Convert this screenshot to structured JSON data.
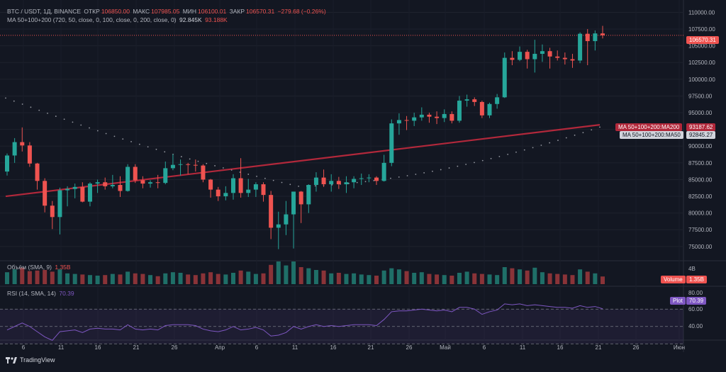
{
  "header": {
    "symbol": "BTC / USDT, 1Д, BINANCE",
    "open_label": "ОТКР",
    "open": "106850.00",
    "high_label": "МАКС",
    "high": "107985.05",
    "low_label": "МИН",
    "low": "106100.01",
    "close_label": "ЗАКР",
    "close": "106570.31",
    "change": "−279.68 (−0.26%)",
    "ma_label": "MA 50+100+200 (720, 50, close, 0, 100, close, 0, 200, close, 0)",
    "ma_v1": "92.845K",
    "ma_v2": "93.188K"
  },
  "price_axis": [
    "110000.00",
    "107500.00",
    "105000.00",
    "102500.00",
    "100000.00",
    "97500.00",
    "95000.00",
    "92500.00",
    "90000.00",
    "87500.00",
    "85000.00",
    "82500.00",
    "80000.00",
    "77500.00",
    "75000.00"
  ],
  "tags": {
    "last_price": "106570.31",
    "ma200_label": "MA 50+100+200:MA200",
    "ma200_value": "93187.62",
    "ma50_label": "MA 50+100+200:MA50",
    "ma50_value": "92845.27",
    "volume_label": "Volume",
    "volume_value": "1.35B",
    "rsi_label": "Plot",
    "rsi_value": "70.39"
  },
  "volume_pane": {
    "title": "Объём (SMA, 9)",
    "value": "1.35B",
    "axis": "4B"
  },
  "rsi_pane": {
    "title": "RSI (14, SMA, 14)",
    "value": "70.39",
    "axis": [
      "80.00",
      "60.00",
      "40.00"
    ]
  },
  "time_axis": [
    "6",
    "11",
    "16",
    "21",
    "26",
    "Апр",
    "6",
    "11",
    "16",
    "21",
    "26",
    "Май",
    "6",
    "11",
    "16",
    "21",
    "26",
    "Июн"
  ],
  "footer": {
    "brand": "TradingView"
  },
  "colors": {
    "up": "#26a69a",
    "down": "#ef5350",
    "ma200": "#b2283b",
    "ma50": "#9598a1",
    "rsi": "#7e57c2"
  },
  "chart_data": {
    "type": "candlestick",
    "symbol": "BTC / USDT, 1Д, BINANCE",
    "ylim": [
      73500,
      111000
    ],
    "candles": [
      [
        86200,
        88900,
        85600,
        88600
      ],
      [
        88600,
        91200,
        87500,
        90600
      ],
      [
        90600,
        92800,
        89200,
        90100
      ],
      [
        90100,
        90600,
        86900,
        87400
      ],
      [
        87400,
        87500,
        83500,
        84800
      ],
      [
        84800,
        85200,
        80100,
        81100
      ],
      [
        81100,
        81800,
        77600,
        79400
      ],
      [
        79400,
        83800,
        76800,
        83400
      ],
      [
        83400,
        84000,
        81000,
        83600
      ],
      [
        83600,
        84400,
        82200,
        83900
      ],
      [
        83900,
        84600,
        81600,
        81700
      ],
      [
        81700,
        84600,
        81000,
        84400
      ],
      [
        84400,
        85000,
        83000,
        84600
      ],
      [
        84600,
        85300,
        83500,
        84000
      ],
      [
        84000,
        85700,
        83700,
        84200
      ],
      [
        84200,
        85500,
        82400,
        83300
      ],
      [
        83300,
        87300,
        83200,
        86900
      ],
      [
        86900,
        87300,
        84500,
        84900
      ],
      [
        84900,
        85500,
        83700,
        84400
      ],
      [
        84400,
        84900,
        83800,
        84600
      ],
      [
        84600,
        85700,
        83700,
        84500
      ],
      [
        84500,
        87700,
        84300,
        86700
      ],
      [
        86700,
        88800,
        86400,
        87200
      ],
      [
        87200,
        88000,
        85600,
        87300
      ],
      [
        87300,
        87500,
        85800,
        87200
      ],
      [
        87200,
        88000,
        86200,
        87100
      ],
      [
        87100,
        87300,
        84600,
        85000
      ],
      [
        85000,
        85100,
        82300,
        83500
      ],
      [
        83500,
        83900,
        81800,
        82500
      ],
      [
        82500,
        84000,
        81900,
        83000
      ],
      [
        83000,
        85800,
        82000,
        85200
      ],
      [
        85200,
        88200,
        82300,
        83000
      ],
      [
        83000,
        85100,
        82400,
        83500
      ],
      [
        83500,
        84600,
        82400,
        84300
      ],
      [
        84300,
        84600,
        81700,
        82700
      ],
      [
        82700,
        83300,
        76100,
        77800
      ],
      [
        77800,
        80200,
        74600,
        78300
      ],
      [
        78300,
        81800,
        76700,
        79800
      ],
      [
        79800,
        83200,
        74700,
        83200
      ],
      [
        83200,
        83300,
        78500,
        81300
      ],
      [
        81300,
        84300,
        80000,
        84200
      ],
      [
        84200,
        86100,
        83200,
        85300
      ],
      [
        85300,
        86500,
        83900,
        84300
      ],
      [
        84300,
        85800,
        83200,
        84800
      ],
      [
        84800,
        85400,
        83600,
        84300
      ],
      [
        84300,
        85500,
        83000,
        84600
      ],
      [
        84600,
        85500,
        83700,
        85100
      ],
      [
        85100,
        85900,
        84200,
        85200
      ],
      [
        85200,
        85800,
        84600,
        85300
      ],
      [
        85300,
        85500,
        84200,
        84800
      ],
      [
        84800,
        88700,
        84700,
        87500
      ],
      [
        87500,
        94000,
        87000,
        93400
      ],
      [
        93400,
        94900,
        91700,
        93900
      ],
      [
        93900,
        94500,
        92400,
        93800
      ],
      [
        93800,
        95000,
        93000,
        94300
      ],
      [
        94300,
        95800,
        93800,
        94700
      ],
      [
        94700,
        95000,
        93500,
        94400
      ],
      [
        94400,
        95200,
        93300,
        94200
      ],
      [
        94200,
        95500,
        93600,
        94800
      ],
      [
        94800,
        95200,
        93400,
        93800
      ],
      [
        93800,
        97500,
        93500,
        96800
      ],
      [
        96800,
        97700,
        95900,
        97000
      ],
      [
        97000,
        97300,
        96000,
        96600
      ],
      [
        96600,
        96800,
        94200,
        94600
      ],
      [
        94600,
        96500,
        94200,
        96300
      ],
      [
        96300,
        97800,
        95600,
        97300
      ],
      [
        97300,
        104000,
        97200,
        103200
      ],
      [
        103200,
        104200,
        102100,
        102900
      ],
      [
        102900,
        104900,
        102700,
        104100
      ],
      [
        104100,
        104400,
        101600,
        103000
      ],
      [
        103000,
        105900,
        101000,
        103800
      ],
      [
        103800,
        105200,
        102600,
        104200
      ],
      [
        104200,
        104700,
        101600,
        103400
      ],
      [
        103400,
        104300,
        102800,
        103200
      ],
      [
        103200,
        104000,
        102200,
        103000
      ],
      [
        103000,
        103800,
        101700,
        102800
      ],
      [
        102800,
        107000,
        102400,
        106800
      ],
      [
        106800,
        107500,
        102100,
        105700
      ],
      [
        105700,
        107300,
        104300,
        106850
      ],
      [
        106850,
        107985,
        106100,
        106570
      ]
    ],
    "ma200": [
      82500,
      93187.62
    ],
    "ma50_last": 92845.27,
    "volume": [
      2.1,
      2.6,
      2.9,
      2.3,
      2.4,
      2.5,
      2.2,
      2.6,
      1.9,
      1.8,
      1.7,
      1.6,
      1.5,
      1.6,
      1.8,
      1.7,
      2.2,
      1.9,
      1.8,
      1.6,
      1.4,
      1.9,
      2.1,
      2.0,
      1.7,
      1.6,
      1.9,
      2.1,
      1.8,
      1.7,
      2.0,
      2.4,
      2.2,
      1.8,
      1.9,
      3.4,
      4.0,
      3.3,
      4.0,
      3.0,
      2.8,
      2.5,
      2.4,
      1.9,
      2.0,
      1.8,
      1.9,
      1.7,
      1.6,
      1.5,
      2.4,
      2.8,
      2.6,
      2.3,
      2.0,
      2.1,
      1.8,
      1.7,
      1.6,
      1.5,
      2.0,
      2.2,
      1.9,
      1.8,
      1.7,
      1.6,
      3.0,
      2.8,
      2.6,
      2.4,
      2.9,
      2.1,
      1.9,
      1.8,
      1.7,
      1.6,
      2.6,
      2.2,
      1.9,
      1.35
    ],
    "rsi": [
      46,
      50,
      54,
      50,
      44,
      38,
      34,
      44,
      45,
      46,
      43,
      47,
      48,
      47,
      47,
      46,
      52,
      47,
      46,
      47,
      46,
      51,
      52,
      52,
      52,
      51,
      47,
      45,
      44,
      46,
      50,
      46,
      47,
      49,
      46,
      39,
      40,
      43,
      50,
      47,
      50,
      52,
      50,
      51,
      50,
      51,
      52,
      52,
      52,
      51,
      58,
      67,
      68,
      68,
      69,
      70,
      69,
      68,
      69,
      67,
      72,
      72,
      70,
      64,
      67,
      69,
      76,
      75,
      76,
      74,
      75,
      74,
      73,
      72,
      72,
      71,
      74,
      72,
      73,
      70.39
    ]
  }
}
